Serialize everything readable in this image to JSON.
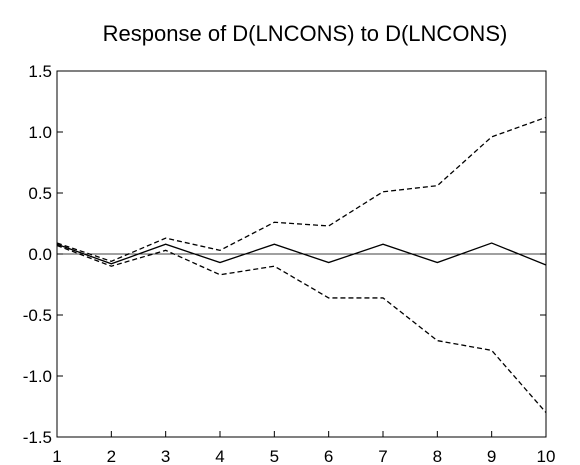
{
  "chart_data": {
    "type": "line",
    "title": "Response of D(LNCONS) to D(LNCONS)",
    "x": [
      1,
      2,
      3,
      4,
      5,
      6,
      7,
      8,
      9,
      10
    ],
    "xlim": [
      1,
      10
    ],
    "xticks": [
      1,
      2,
      3,
      4,
      5,
      6,
      7,
      8,
      9,
      10
    ],
    "ylim": [
      -1.5,
      1.5
    ],
    "yticks": [
      -1.5,
      {
        "value": -1.0,
        "label": "-1.0"
      },
      -0.5,
      {
        "value": 0.0,
        "label": "0.0"
      },
      0.5,
      {
        "value": 1.0,
        "label": "1.0"
      },
      1.5
    ],
    "zero_line": true,
    "grid": false,
    "series": [
      {
        "color": "#000000",
        "dashed": false,
        "values": [
          0.08,
          -0.08,
          0.08,
          -0.07,
          0.08,
          -0.07,
          0.08,
          -0.07,
          0.09,
          -0.09
        ]
      },
      {
        "color": "#000000",
        "dashed": true,
        "values": [
          0.09,
          -0.06,
          0.13,
          0.03,
          0.26,
          0.23,
          0.51,
          0.56,
          0.96,
          1.12
        ]
      },
      {
        "color": "#000000",
        "dashed": true,
        "values": [
          0.07,
          -0.1,
          0.03,
          -0.17,
          -0.1,
          -0.36,
          -0.36,
          -0.71,
          -0.79,
          -1.3
        ]
      }
    ]
  }
}
